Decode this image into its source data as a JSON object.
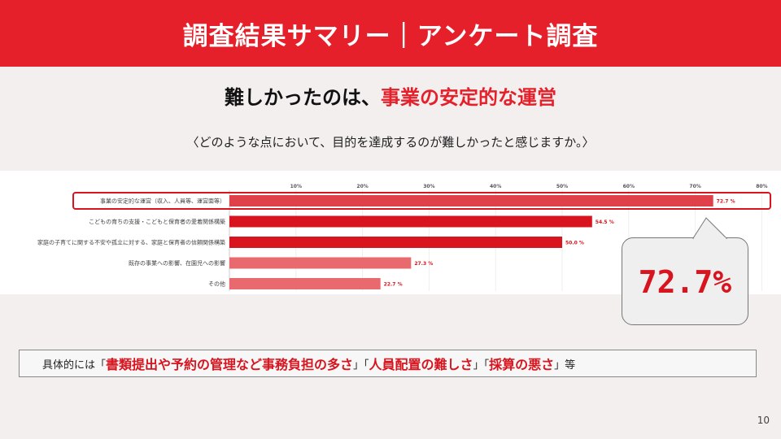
{
  "header": {
    "title": "調査結果サマリー｜アンケート調査"
  },
  "subtitle": {
    "prefix": "難しかったのは、",
    "highlight": "事業の安定的な運営"
  },
  "question": "〈どのような点において、目的を達成するのが難しかったと感じますか。〉",
  "chart_data": {
    "type": "bar",
    "orientation": "horizontal",
    "categories": [
      "事業の安定的な運営（収入、人員等、運営面等）",
      "こどもの育ちの支援・こどもと保育者の愛着関係構築",
      "家庭の子育てに関する不安や孤立に対する、家庭と保育者の信頼関係構築",
      "既存の事業への影響、在園児への影響",
      "その他"
    ],
    "values": [
      72.7,
      54.5,
      50.0,
      27.3,
      22.7
    ],
    "value_labels": [
      "72.7 %",
      "54.5 %",
      "50.0 %",
      "27.3 %",
      "22.7 %"
    ],
    "xticks": [
      "10%",
      "20%",
      "30%",
      "40%",
      "50%",
      "60%",
      "70%",
      "80%"
    ],
    "xlim": [
      0,
      80
    ],
    "highlighted_index": 0,
    "colors": [
      "#e0404a",
      "#d8141e",
      "#d8141e",
      "#e96a6e",
      "#e96a6e"
    ],
    "grid": true
  },
  "callout": {
    "value": "72.7%"
  },
  "summary": {
    "prefix": "具体的には「",
    "item1": "書類提出や予約の管理など事務負担の多さ",
    "sep1": "」「",
    "item2": "人員配置の難しさ",
    "sep2": "」「",
    "item3": "採算の悪さ",
    "suffix": "」等"
  },
  "page_number": "10"
}
